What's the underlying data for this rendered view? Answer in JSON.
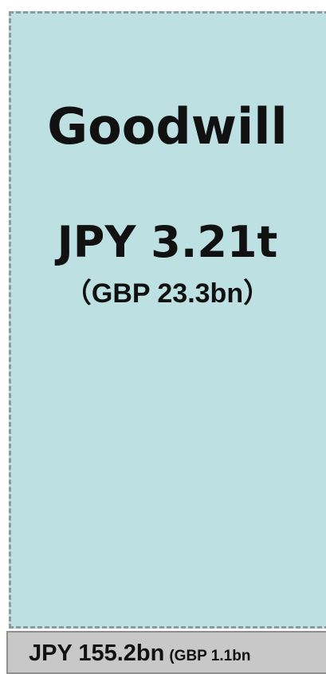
{
  "box": {
    "title": "Goodwill",
    "value": "JPY 3.21t",
    "value_gbp": "（GBP 23.3bn）"
  },
  "footer": {
    "value": "JPY 155.2bn",
    "value_gbp": "(GBP 1.1bn"
  }
}
